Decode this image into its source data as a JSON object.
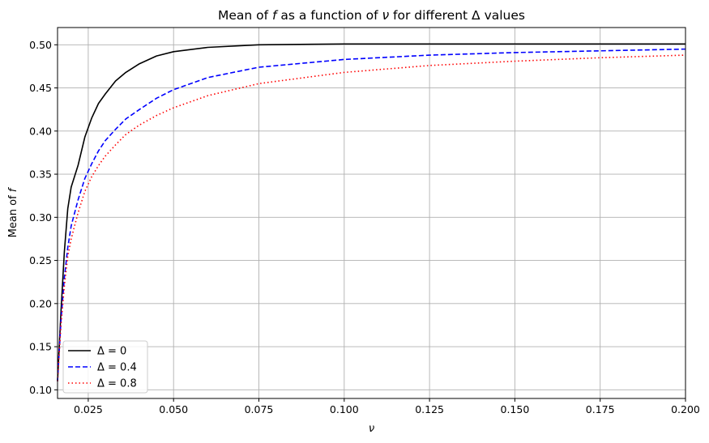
{
  "chart_data": {
    "type": "line",
    "title": "Mean of f as a function of ν for different Δ values",
    "xlabel": "ν",
    "ylabel": "Mean of f",
    "xlim": [
      0.016,
      0.2
    ],
    "ylim": [
      0.09,
      0.52
    ],
    "xticks": [
      "0.025",
      "0.050",
      "0.075",
      "0.100",
      "0.125",
      "0.150",
      "0.175",
      "0.200"
    ],
    "yticks": [
      "0.10",
      "0.15",
      "0.20",
      "0.25",
      "0.30",
      "0.35",
      "0.40",
      "0.45",
      "0.50"
    ],
    "grid": true,
    "legend_placement": "lower-left",
    "series": [
      {
        "name": "Δ = 0",
        "color": "#000000",
        "style": "solid",
        "x": [
          0.016,
          0.017,
          0.018,
          0.019,
          0.02,
          0.022,
          0.024,
          0.026,
          0.028,
          0.03,
          0.033,
          0.036,
          0.04,
          0.045,
          0.05,
          0.06,
          0.075,
          0.1,
          0.125,
          0.15,
          0.175,
          0.2
        ],
        "y": [
          0.11,
          0.19,
          0.26,
          0.31,
          0.335,
          0.36,
          0.393,
          0.415,
          0.432,
          0.443,
          0.458,
          0.468,
          0.478,
          0.487,
          0.492,
          0.497,
          0.5,
          0.501,
          0.501,
          0.501,
          0.501,
          0.501
        ]
      },
      {
        "name": "Δ = 0.4",
        "color": "#0000ff",
        "style": "dashed",
        "x": [
          0.016,
          0.017,
          0.018,
          0.019,
          0.02,
          0.022,
          0.024,
          0.026,
          0.028,
          0.03,
          0.033,
          0.036,
          0.04,
          0.045,
          0.05,
          0.06,
          0.075,
          0.1,
          0.125,
          0.15,
          0.175,
          0.2
        ],
        "y": [
          0.11,
          0.18,
          0.23,
          0.265,
          0.29,
          0.32,
          0.345,
          0.362,
          0.377,
          0.389,
          0.402,
          0.414,
          0.425,
          0.438,
          0.448,
          0.462,
          0.474,
          0.483,
          0.488,
          0.491,
          0.493,
          0.495
        ]
      },
      {
        "name": "Δ = 0.8",
        "color": "#ff0000",
        "style": "dotted",
        "x": [
          0.016,
          0.017,
          0.018,
          0.019,
          0.02,
          0.022,
          0.024,
          0.026,
          0.028,
          0.03,
          0.033,
          0.036,
          0.04,
          0.045,
          0.05,
          0.06,
          0.075,
          0.1,
          0.125,
          0.15,
          0.175,
          0.2
        ],
        "y": [
          0.11,
          0.175,
          0.22,
          0.255,
          0.275,
          0.305,
          0.33,
          0.347,
          0.36,
          0.371,
          0.384,
          0.396,
          0.407,
          0.418,
          0.427,
          0.441,
          0.455,
          0.468,
          0.476,
          0.481,
          0.485,
          0.488
        ]
      }
    ]
  }
}
